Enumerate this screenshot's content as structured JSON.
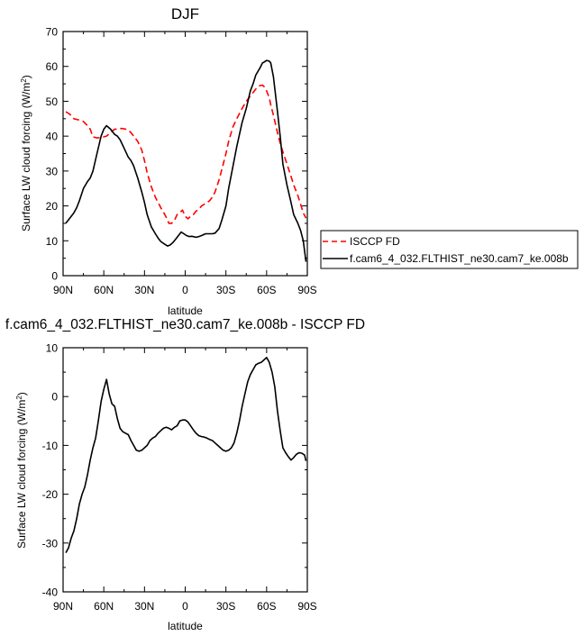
{
  "chart_data": [
    {
      "type": "line",
      "title": "DJF",
      "xlabel": "latitude",
      "ylabel_main": "Surface LW cloud forcing (W/m",
      "ylabel_sup": "2",
      "ylabel_close": ")",
      "xlim": [
        -90,
        90
      ],
      "ylim": [
        0,
        70
      ],
      "yticks": [
        0,
        10,
        20,
        30,
        40,
        50,
        60,
        70
      ],
      "xticks": [
        -90,
        -60,
        -30,
        0,
        30,
        60,
        90
      ],
      "xtick_labels": [
        "90N",
        "60N",
        "30N",
        "0",
        "30S",
        "60S",
        "90S"
      ],
      "legend": {
        "position": "right",
        "entries": [
          "ISCCP FD",
          "f.cam6_4_032.FLTHIST_ne30.cam7_ke.008b"
        ]
      },
      "series": [
        {
          "name": "ISCCP FD",
          "color": "#ff0000",
          "dash": "dashed",
          "x": [
            -88,
            -85,
            -82,
            -78,
            -75,
            -72,
            -70,
            -68,
            -65,
            -62,
            -60,
            -58,
            -55,
            -52,
            -50,
            -47,
            -45,
            -42,
            -40,
            -38,
            -35,
            -32,
            -30,
            -28,
            -25,
            -22,
            -20,
            -18,
            -15,
            -13,
            -12,
            -10,
            -8,
            -6,
            -4,
            -2,
            0,
            2,
            4,
            6,
            8,
            10,
            12,
            15,
            18,
            20,
            22,
            25,
            27,
            30,
            32,
            35,
            38,
            40,
            42,
            45,
            48,
            50,
            52,
            55,
            57,
            58,
            60,
            62,
            63,
            65,
            68,
            70,
            72,
            75,
            78,
            80,
            83,
            85,
            87,
            89
          ],
          "values": [
            47.0,
            46.3,
            45.0,
            44.6,
            44.2,
            43.0,
            42.0,
            39.8,
            39.5,
            39.6,
            39.8,
            40.0,
            41.0,
            42.0,
            42.0,
            42.2,
            42.1,
            41.8,
            41.0,
            40.0,
            38.5,
            36.0,
            33.0,
            29.5,
            25.5,
            22.5,
            21.0,
            19.5,
            17.5,
            16.0,
            15.0,
            15.0,
            15.8,
            17.5,
            18.0,
            18.8,
            17.0,
            16.3,
            17.0,
            17.5,
            18.5,
            19.0,
            20.0,
            20.7,
            21.5,
            22.5,
            24.0,
            27.5,
            30.5,
            35.0,
            38.5,
            42.5,
            45.0,
            46.5,
            48.0,
            50.0,
            51.5,
            52.5,
            53.5,
            54.5,
            54.6,
            54.3,
            53.0,
            51.0,
            49.0,
            46.0,
            41.0,
            38.0,
            35.5,
            32.0,
            28.5,
            26.0,
            23.0,
            20.5,
            18.0,
            16.5
          ]
        },
        {
          "name": "f.cam6_4_032.FLTHIST_ne30.cam7_ke.008b",
          "color": "#000000",
          "dash": "solid",
          "x": [
            -88,
            -85,
            -82,
            -80,
            -78,
            -75,
            -72,
            -70,
            -68,
            -65,
            -62,
            -60,
            -58,
            -55,
            -52,
            -50,
            -48,
            -45,
            -42,
            -40,
            -38,
            -35,
            -32,
            -30,
            -28,
            -25,
            -22,
            -20,
            -18,
            -15,
            -13,
            -11,
            -9,
            -7,
            -5,
            -3,
            -1,
            1,
            3,
            5,
            8,
            10,
            12,
            15,
            18,
            20,
            22,
            25,
            27,
            30,
            32,
            35,
            38,
            40,
            42,
            45,
            48,
            50,
            52,
            55,
            57,
            58,
            60,
            62,
            63,
            65,
            68,
            70,
            72,
            75,
            78,
            80,
            83,
            85,
            87,
            89
          ],
          "values": [
            15.0,
            16.5,
            18.0,
            19.5,
            21.5,
            25.0,
            27.0,
            28.0,
            30.0,
            35.0,
            40.0,
            42.0,
            43.0,
            42.0,
            40.5,
            40.0,
            39.0,
            36.5,
            34.0,
            33.0,
            31.5,
            28.0,
            24.0,
            21.0,
            17.5,
            14.0,
            12.0,
            10.8,
            9.8,
            9.0,
            8.5,
            8.8,
            9.5,
            10.5,
            11.5,
            12.5,
            12.0,
            11.5,
            11.2,
            11.3,
            11.0,
            11.2,
            11.5,
            12.0,
            12.0,
            12.0,
            12.2,
            13.5,
            16.0,
            20.0,
            25.0,
            31.0,
            37.0,
            40.5,
            44.0,
            48.0,
            53.0,
            55.0,
            57.5,
            59.5,
            61.0,
            61.2,
            61.7,
            61.5,
            61.0,
            57.0,
            47.0,
            40.0,
            32.0,
            26.0,
            21.0,
            17.5,
            15.0,
            13.0,
            10.0,
            4.0
          ]
        }
      ]
    },
    {
      "type": "line",
      "title": "f.cam6_4_032.FLTHIST_ne30.cam7_ke.008b - ISCCP FD",
      "xlabel": "latitude",
      "ylabel_main": "Surface LW cloud forcing (W/m",
      "ylabel_sup": "2",
      "ylabel_close": ")",
      "xlim": [
        -90,
        90
      ],
      "ylim": [
        -40,
        10
      ],
      "yticks": [
        -40,
        -30,
        -20,
        -10,
        0,
        10
      ],
      "xticks": [
        -90,
        -60,
        -30,
        0,
        30,
        60,
        90
      ],
      "xtick_labels": [
        "90N",
        "60N",
        "30N",
        "0",
        "30S",
        "60S",
        "90S"
      ],
      "series": [
        {
          "name": "f.cam6_4_032.FLTHIST_ne30.cam7_ke.008b - ISCCP FD",
          "color": "#000000",
          "dash": "solid",
          "x": [
            -88,
            -86,
            -84,
            -82,
            -80,
            -78,
            -76,
            -74,
            -72,
            -70,
            -68,
            -66,
            -64,
            -62,
            -60,
            -58,
            -56,
            -54,
            -52,
            -50,
            -48,
            -46,
            -44,
            -42,
            -40,
            -38,
            -36,
            -34,
            -32,
            -30,
            -28,
            -26,
            -24,
            -22,
            -20,
            -18,
            -16,
            -14,
            -12,
            -10,
            -8,
            -6,
            -4,
            -2,
            0,
            2,
            4,
            6,
            8,
            10,
            12,
            14,
            16,
            18,
            20,
            22,
            24,
            26,
            28,
            30,
            32,
            34,
            36,
            38,
            40,
            42,
            44,
            46,
            48,
            50,
            52,
            54,
            56,
            58,
            60,
            62,
            64,
            66,
            68,
            70,
            72,
            74,
            76,
            78,
            80,
            82,
            84,
            86,
            88,
            89
          ],
          "values": [
            -32.0,
            -31.0,
            -29.0,
            -27.5,
            -25.0,
            -22.0,
            -20.0,
            -18.5,
            -16.0,
            -13.0,
            -10.5,
            -8.5,
            -5.0,
            -1.0,
            1.5,
            3.5,
            0.5,
            -1.5,
            -2.0,
            -4.5,
            -6.5,
            -7.2,
            -7.5,
            -7.8,
            -9.0,
            -10.0,
            -11.0,
            -11.2,
            -11.0,
            -10.5,
            -10.0,
            -9.0,
            -8.5,
            -8.2,
            -7.5,
            -7.0,
            -6.5,
            -6.3,
            -6.5,
            -6.8,
            -6.3,
            -6.0,
            -5.0,
            -4.8,
            -4.8,
            -5.2,
            -6.0,
            -6.8,
            -7.5,
            -8.0,
            -8.2,
            -8.3,
            -8.5,
            -8.8,
            -9.0,
            -9.5,
            -10.0,
            -10.5,
            -11.0,
            -11.2,
            -11.0,
            -10.5,
            -9.5,
            -7.5,
            -5.0,
            -2.0,
            0.5,
            3.0,
            4.5,
            5.5,
            6.5,
            6.8,
            7.0,
            7.5,
            8.0,
            7.0,
            5.0,
            2.0,
            -3.0,
            -7.0,
            -10.5,
            -11.5,
            -12.3,
            -13.0,
            -12.5,
            -11.8,
            -11.5,
            -11.6,
            -12.0,
            -13.2
          ]
        }
      ]
    }
  ]
}
